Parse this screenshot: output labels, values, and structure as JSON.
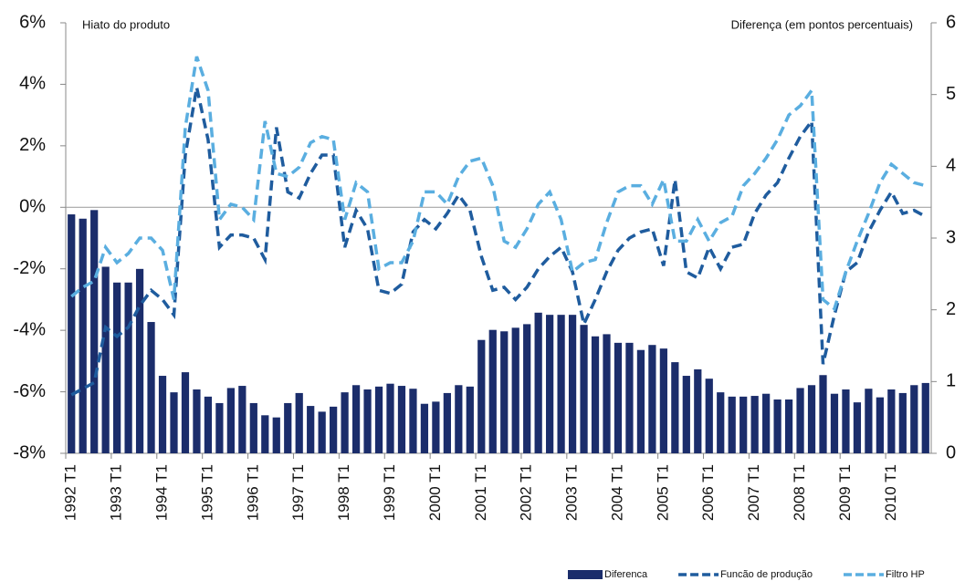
{
  "chart_data": {
    "type": "bar-line",
    "annotations": [
      "Hiato do produto",
      "Diferença (em pontos percentuais)"
    ],
    "categories": [
      "1992 T1",
      null,
      null,
      null,
      "1993 T1",
      null,
      null,
      null,
      "1994 T1",
      null,
      null,
      null,
      "1995 T1",
      null,
      null,
      null,
      "1996 T1",
      null,
      null,
      null,
      "1997 T1",
      null,
      null,
      null,
      "1998 T1",
      null,
      null,
      null,
      "1999 T1",
      null,
      null,
      null,
      "2000 T1",
      null,
      null,
      null,
      "2001 T1",
      null,
      null,
      null,
      "2002 T1",
      null,
      null,
      null,
      "2003 T1",
      null,
      null,
      null,
      "2004 T1",
      null,
      null,
      null,
      "2005 T1",
      null,
      null,
      null,
      "2006 T1",
      null,
      null,
      null,
      "2007 T1",
      null,
      null,
      null,
      "2008 T1",
      null,
      null,
      null,
      "2009 T1",
      null,
      null,
      null,
      "2010 T1",
      null,
      null,
      null
    ],
    "series": [
      {
        "name": "Diferenca",
        "type": "bar",
        "axis": "y2",
        "color": "#1b2d6b",
        "values": [
          3.33,
          3.27,
          3.39,
          2.6,
          2.38,
          2.38,
          2.57,
          1.83,
          1.08,
          0.85,
          1.13,
          0.89,
          0.79,
          0.7,
          0.91,
          0.94,
          0.7,
          0.53,
          0.5,
          0.7,
          0.84,
          0.66,
          0.58,
          0.65,
          0.85,
          0.95,
          0.89,
          0.93,
          0.97,
          0.94,
          0.9,
          0.69,
          0.72,
          0.84,
          0.95,
          0.93,
          1.58,
          1.72,
          1.7,
          1.75,
          1.8,
          1.96,
          1.93,
          1.93,
          1.93,
          1.79,
          1.63,
          1.66,
          1.54,
          1.54,
          1.44,
          1.51,
          1.46,
          1.27,
          1.08,
          1.17,
          1.04,
          0.85,
          0.79,
          0.79,
          0.8,
          0.83,
          0.75,
          0.75,
          0.91,
          0.95,
          1.09,
          0.83,
          0.89,
          0.71,
          0.9,
          0.78,
          0.89,
          0.84,
          0.95,
          0.98
        ]
      },
      {
        "name": "Funcão de produção",
        "type": "line",
        "color": "#1f5c9e",
        "values": [
          -6.1,
          -5.9,
          -5.7,
          -3.9,
          -4.2,
          -3.9,
          -3.2,
          -2.7,
          -3.0,
          -3.5,
          1.7,
          3.9,
          2.2,
          -1.3,
          -0.9,
          -0.9,
          -1.0,
          -1.7,
          2.6,
          0.5,
          0.3,
          1.1,
          1.7,
          1.7,
          -1.3,
          -0.1,
          -0.7,
          -2.7,
          -2.8,
          -2.5,
          -0.8,
          -0.4,
          -0.7,
          -0.2,
          0.4,
          -0.1,
          -1.6,
          -2.7,
          -2.6,
          -3.0,
          -2.6,
          -2.0,
          -1.6,
          -1.3,
          -2.1,
          -3.8,
          -3.0,
          -2.1,
          -1.4,
          -1.0,
          -0.8,
          -0.7,
          -1.9,
          0.9,
          -2.1,
          -2.3,
          -1.3,
          -2.0,
          -1.3,
          -1.2,
          -0.2,
          0.4,
          0.8,
          1.6,
          2.3,
          2.8,
          -5.1,
          -3.5,
          -2.1,
          -1.8,
          -0.8,
          -0.1,
          0.5,
          -0.2,
          -0.1,
          -0.3
        ]
      },
      {
        "name": "Filtro HP",
        "type": "line",
        "color": "#5aaee0",
        "values": [
          -2.9,
          -2.6,
          -2.4,
          -1.3,
          -1.8,
          -1.5,
          -1.0,
          -1.0,
          -1.4,
          -3.0,
          2.6,
          4.9,
          3.8,
          -0.4,
          0.1,
          0.0,
          -0.4,
          2.8,
          1.1,
          1.0,
          1.3,
          2.1,
          2.3,
          2.2,
          -0.4,
          0.8,
          0.5,
          -2.0,
          -1.8,
          -1.8,
          -1.1,
          0.5,
          0.5,
          0.1,
          1.0,
          1.5,
          1.6,
          0.7,
          -1.1,
          -1.3,
          -0.7,
          0.1,
          0.5,
          -0.4,
          -2.1,
          -1.8,
          -1.7,
          -0.5,
          0.5,
          0.7,
          0.7,
          0.1,
          0.9,
          -1.1,
          -1.1,
          -0.4,
          -1.1,
          -0.5,
          -0.3,
          0.7,
          1.1,
          1.6,
          2.2,
          3.0,
          3.3,
          3.8,
          -3.0,
          -3.3,
          -2.1,
          -1.1,
          -0.2,
          0.8,
          1.4,
          1.1,
          0.8,
          0.7
        ]
      }
    ],
    "ylim": [
      -8,
      6
    ],
    "yticks": [
      {
        "value": -8,
        "label": "-8%"
      },
      {
        "value": -6,
        "label": "-6%"
      },
      {
        "value": -4,
        "label": "-4%"
      },
      {
        "value": -2,
        "label": "-2%"
      },
      {
        "value": 0,
        "label": "0%"
      },
      {
        "value": 2,
        "label": "2%"
      },
      {
        "value": 4,
        "label": "4%"
      },
      {
        "value": 6,
        "label": "6%"
      }
    ],
    "y2lim": [
      0,
      6
    ],
    "y2ticks": [
      0,
      1,
      2,
      3,
      4,
      5,
      6
    ],
    "legend": "bottom-right"
  }
}
